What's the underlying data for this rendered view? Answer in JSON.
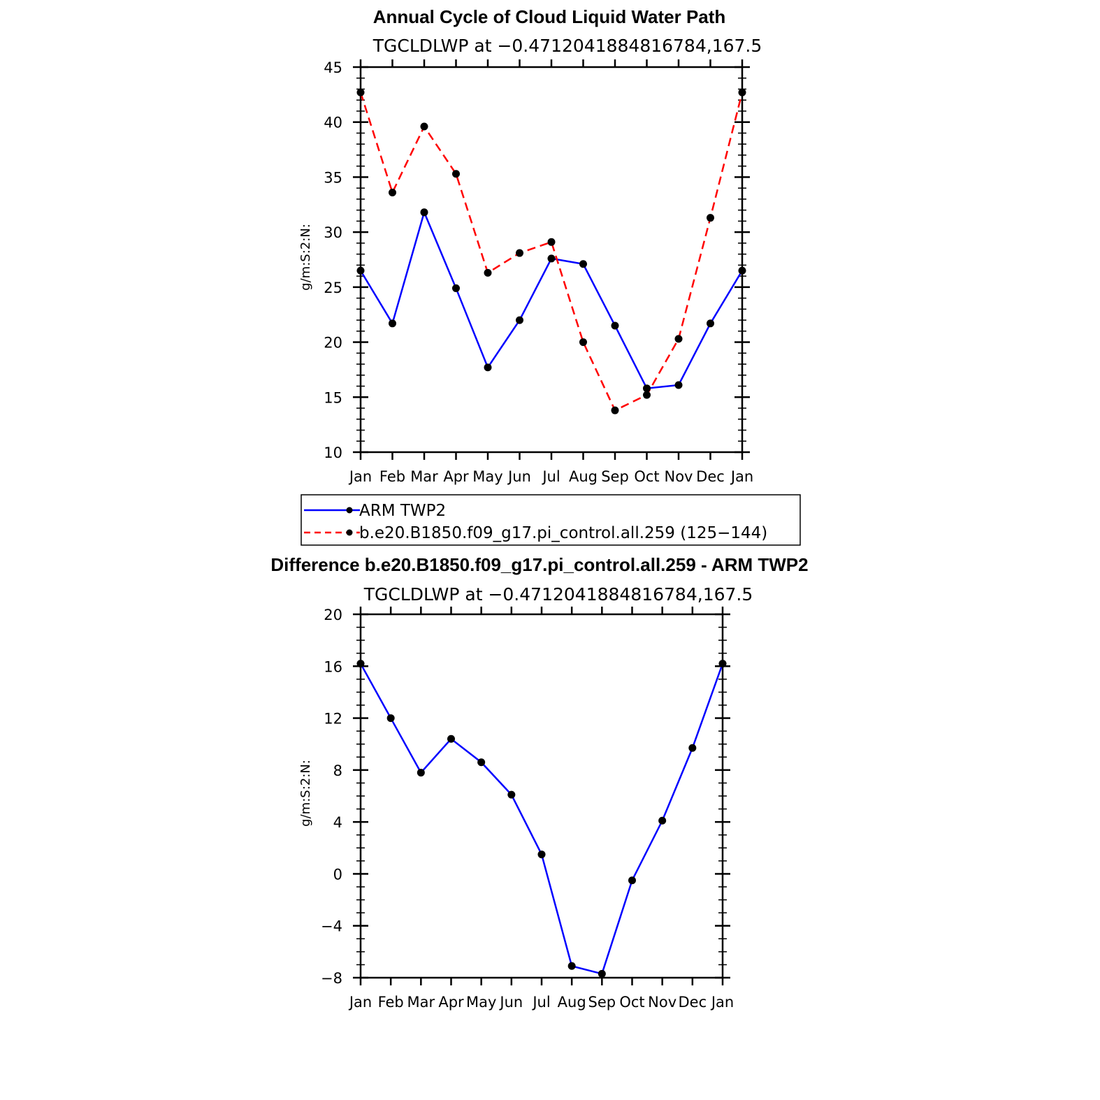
{
  "chart_data": [
    {
      "type": "line",
      "title": "Annual Cycle of Cloud Liquid Water Path",
      "subtitle": "TGCLDLWP at −0.4712041884816784,167.5",
      "ylabel": "g/m:S:2:N:",
      "xlabel": "",
      "categories": [
        "Jan",
        "Feb",
        "Mar",
        "Apr",
        "May",
        "Jun",
        "Jul",
        "Aug",
        "Sep",
        "Oct",
        "Nov",
        "Dec",
        "Jan"
      ],
      "ylim": [
        10,
        45
      ],
      "yticks": [
        "10",
        "15",
        "20",
        "25",
        "30",
        "35",
        "40",
        "45"
      ],
      "grid": false,
      "legend_position": "bottom",
      "series": [
        {
          "name": "ARM TWP2",
          "color": "#0000ff",
          "dash": "solid",
          "values": [
            26.5,
            21.7,
            31.8,
            24.9,
            17.7,
            22.0,
            27.6,
            27.1,
            21.5,
            15.8,
            16.1,
            21.7,
            26.5
          ]
        },
        {
          "name": "b.e20.B1850.f09_g17.pi_control.all.259 (125−144)",
          "color": "#ff0000",
          "dash": "dashed",
          "values": [
            42.7,
            33.6,
            39.6,
            35.3,
            26.3,
            28.1,
            29.1,
            20.0,
            13.8,
            15.2,
            20.3,
            31.3,
            42.7
          ]
        }
      ]
    },
    {
      "type": "line",
      "title": "Difference b.e20.B1850.f09_g17.pi_control.all.259 - ARM TWP2",
      "subtitle": "TGCLDLWP at −0.4712041884816784,167.5",
      "ylabel": "g/m:S:2:N:",
      "xlabel": "",
      "categories": [
        "Jan",
        "Feb",
        "Mar",
        "Apr",
        "May",
        "Jun",
        "Jul",
        "Aug",
        "Sep",
        "Oct",
        "Nov",
        "Dec",
        "Jan"
      ],
      "ylim": [
        -8,
        20
      ],
      "yticks": [
        "−8",
        "−4",
        "0",
        "4",
        "8",
        "12",
        "16",
        "20"
      ],
      "grid": false,
      "series": [
        {
          "color": "#0000ff",
          "dash": "solid",
          "values": [
            16.2,
            12.0,
            7.8,
            10.4,
            8.6,
            6.1,
            1.5,
            -7.1,
            -7.7,
            -0.5,
            4.1,
            9.7,
            16.2
          ]
        }
      ]
    }
  ]
}
